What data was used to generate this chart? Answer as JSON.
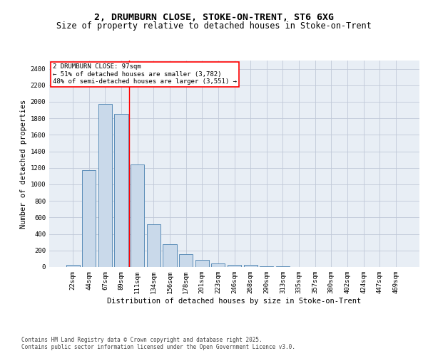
{
  "title_line1": "2, DRUMBURN CLOSE, STOKE-ON-TRENT, ST6 6XG",
  "title_line2": "Size of property relative to detached houses in Stoke-on-Trent",
  "xlabel": "Distribution of detached houses by size in Stoke-on-Trent",
  "ylabel": "Number of detached properties",
  "categories": [
    "22sqm",
    "44sqm",
    "67sqm",
    "89sqm",
    "111sqm",
    "134sqm",
    "156sqm",
    "178sqm",
    "201sqm",
    "223sqm",
    "246sqm",
    "268sqm",
    "290sqm",
    "313sqm",
    "335sqm",
    "357sqm",
    "380sqm",
    "402sqm",
    "424sqm",
    "447sqm",
    "469sqm"
  ],
  "values": [
    25,
    1175,
    1970,
    1855,
    1245,
    515,
    275,
    155,
    85,
    45,
    30,
    25,
    10,
    5,
    3,
    2,
    2,
    1,
    1,
    1,
    1
  ],
  "bar_color": "#c9d9ea",
  "bar_edge_color": "#5b8db8",
  "vline_x": 3.5,
  "vline_color": "red",
  "annotation_text": "2 DRUMBURN CLOSE: 97sqm\n← 51% of detached houses are smaller (3,782)\n48% of semi-detached houses are larger (3,551) →",
  "annotation_box_color": "white",
  "annotation_box_edge": "red",
  "ylim": [
    0,
    2500
  ],
  "yticks": [
    0,
    200,
    400,
    600,
    800,
    1000,
    1200,
    1400,
    1600,
    1800,
    2000,
    2200,
    2400
  ],
  "grid_color": "#c0c8d8",
  "bg_color": "#e8eef5",
  "footer_line1": "Contains HM Land Registry data © Crown copyright and database right 2025.",
  "footer_line2": "Contains public sector information licensed under the Open Government Licence v3.0.",
  "title_fontsize": 9.5,
  "subtitle_fontsize": 8.5,
  "label_fontsize": 7.5,
  "tick_fontsize": 6.5,
  "annot_fontsize": 6.5,
  "footer_fontsize": 5.5
}
